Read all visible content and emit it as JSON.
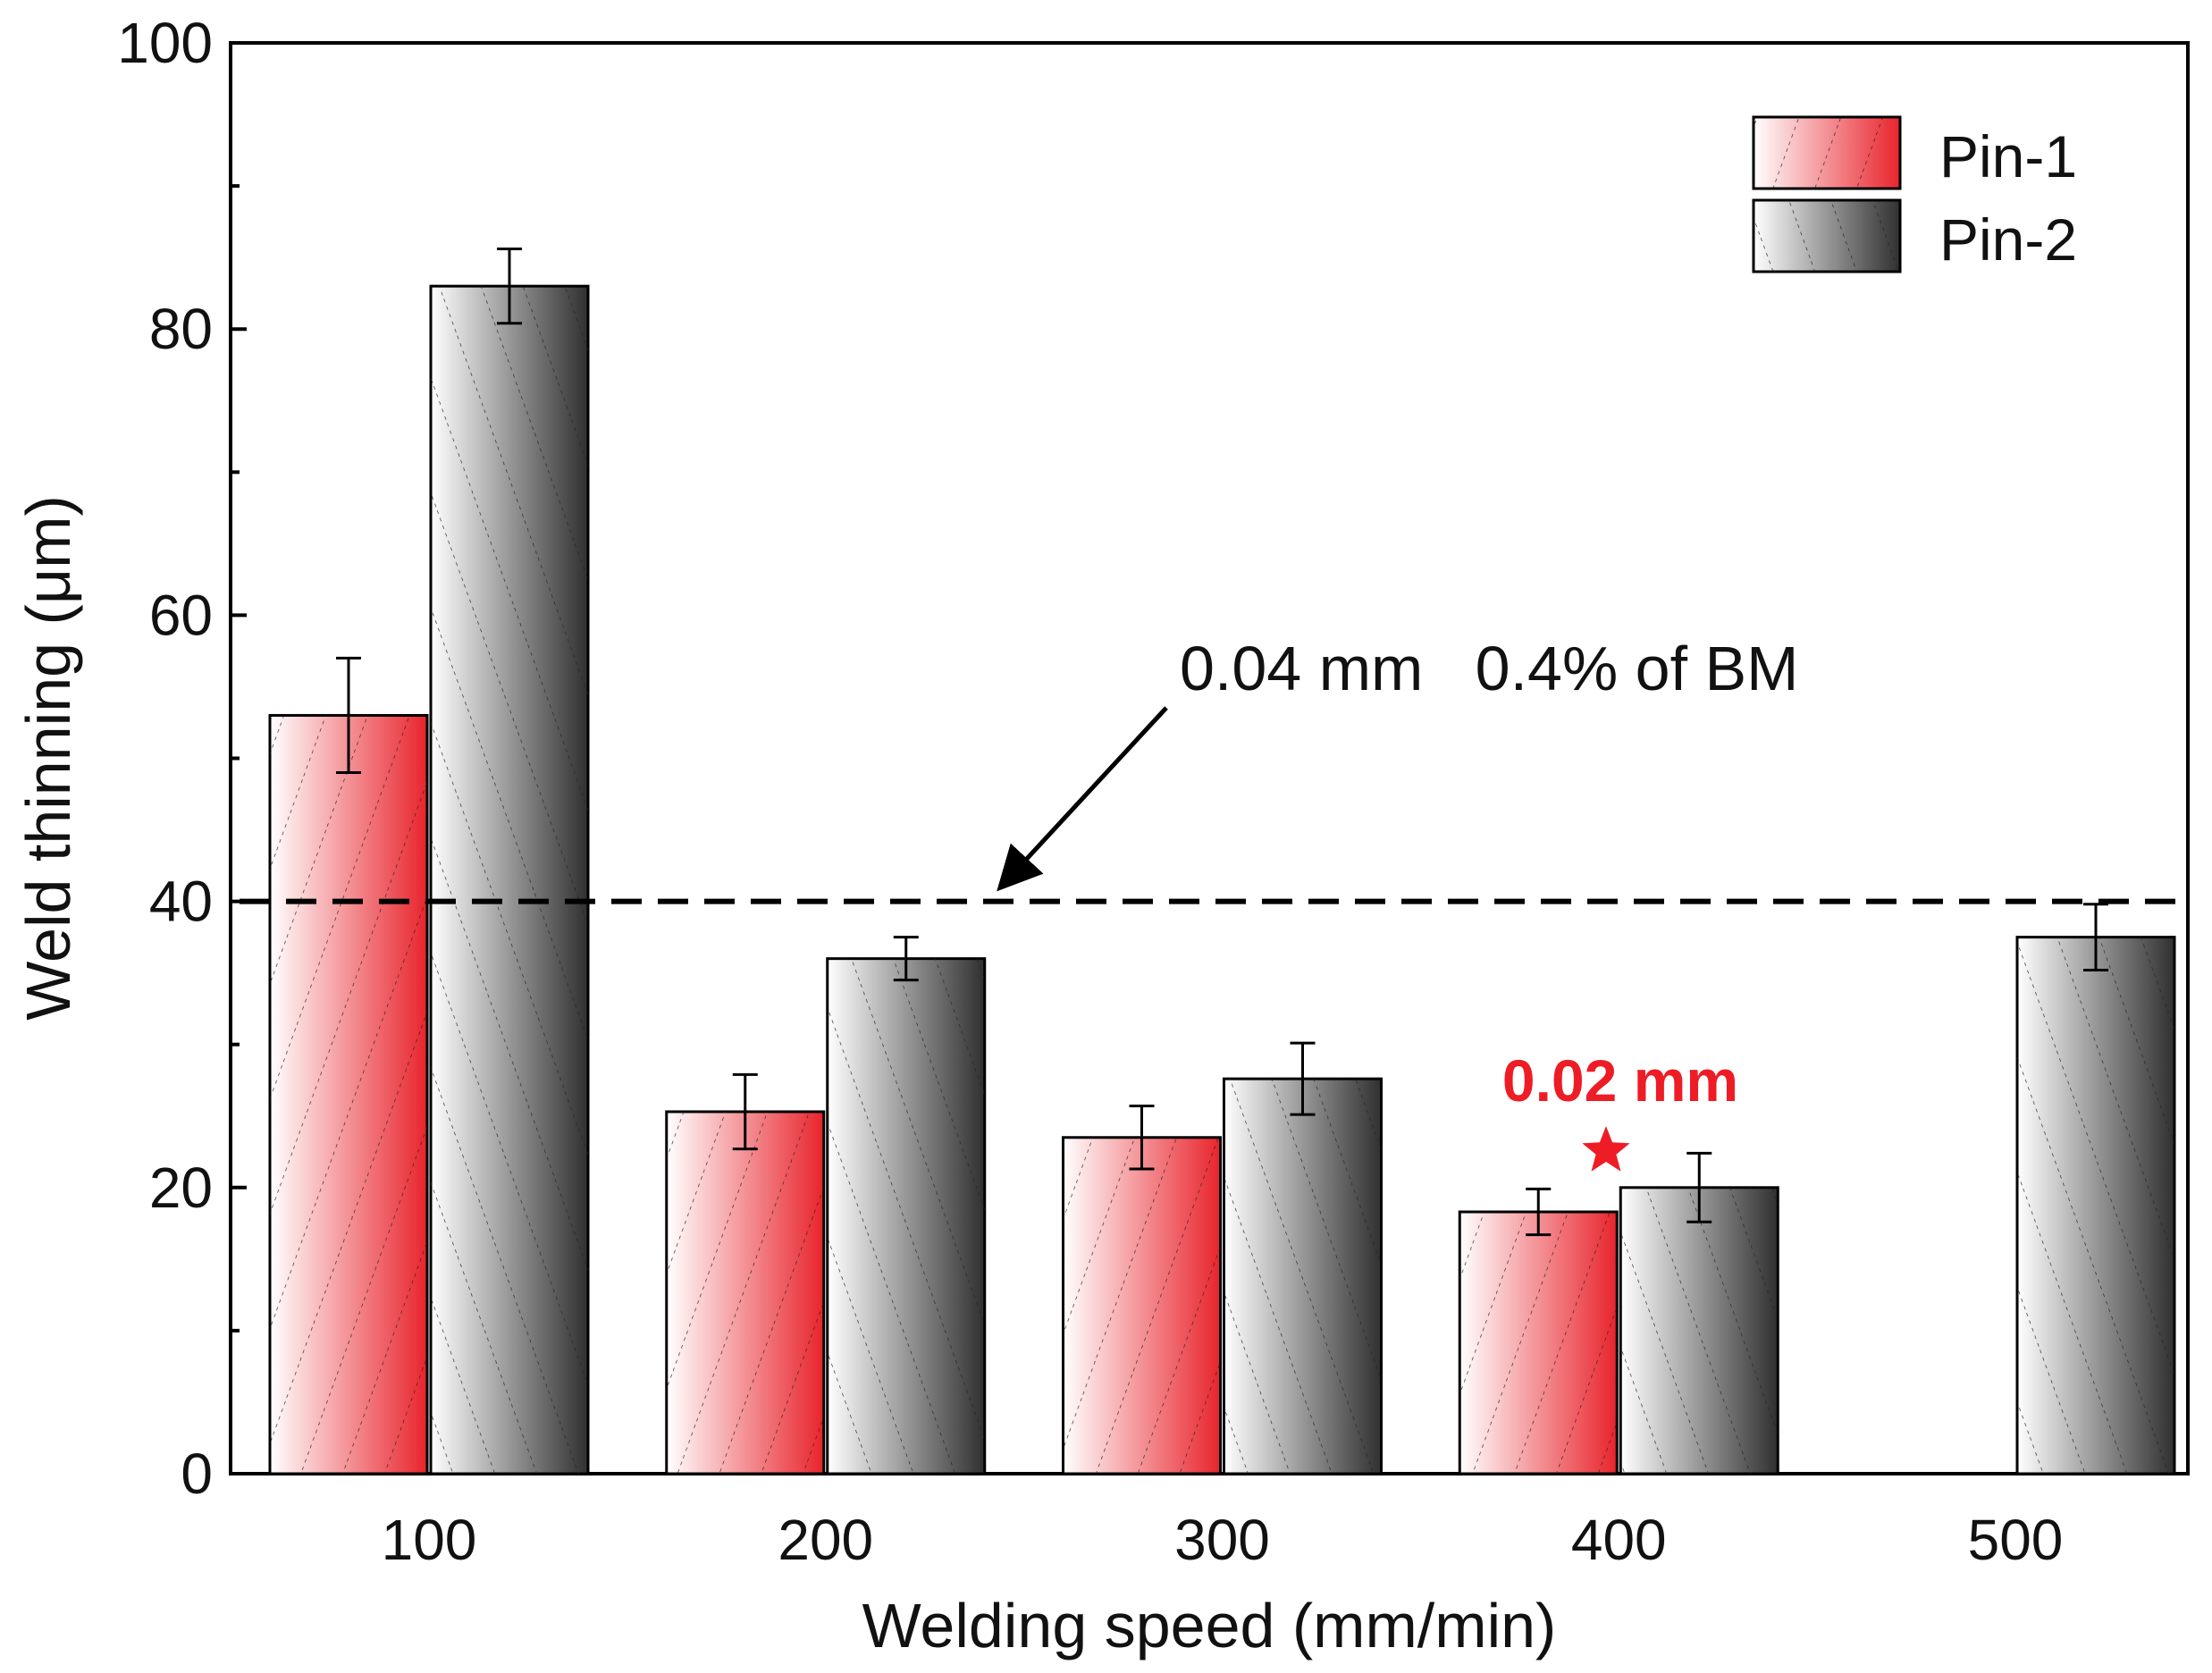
{
  "chart_data": {
    "type": "bar",
    "xlabel": "Welding speed (mm/min)",
    "ylabel": "Weld thinning (μm)",
    "categories": [
      "100",
      "200",
      "300",
      "400",
      "500"
    ],
    "ylim": [
      0,
      100
    ],
    "yticks": [
      "0",
      "20",
      "40",
      "60",
      "80",
      "100"
    ],
    "series": [
      {
        "name": "Pin-1",
        "values": [
          53,
          25.3,
          23.5,
          18.3,
          null
        ],
        "errors": [
          4,
          2.6,
          2.2,
          1.6,
          null
        ]
      },
      {
        "name": "Pin-2",
        "values": [
          83,
          36,
          27.6,
          20,
          37.5
        ],
        "errors": [
          2.6,
          1.5,
          2.5,
          2.4,
          2.3
        ]
      }
    ],
    "reference_line": {
      "value": 40,
      "label": "0.04 mm   0.4% of BM"
    },
    "annotation": {
      "label": "0.02 mm",
      "category": "400"
    },
    "legend_position": "top-right",
    "colors": {
      "pin1": "#e8242c",
      "pin2": "#3a3a3a",
      "highlight": "#ee1c25"
    }
  }
}
